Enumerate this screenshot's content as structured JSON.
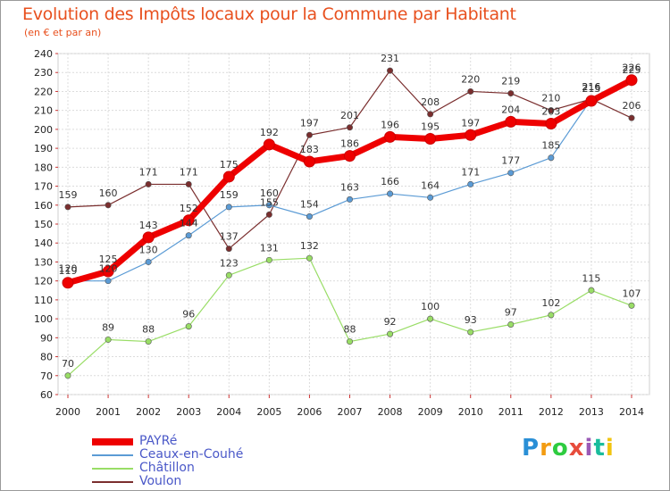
{
  "chart_data": {
    "type": "line",
    "title": "Evolution des Impôts locaux pour la Commune par Habitant",
    "subtitle": "(en € et par an)",
    "xlabel": "",
    "ylabel": "",
    "x": [
      "2000",
      "2001",
      "2002",
      "2003",
      "2004",
      "2005",
      "2006",
      "2007",
      "2008",
      "2009",
      "2010",
      "2011",
      "2012",
      "2013",
      "2014"
    ],
    "yticks": [
      "240",
      "230",
      "220",
      "210",
      "200",
      "190",
      "180",
      "170",
      "160",
      "150",
      "140",
      "130",
      "120",
      "110",
      "100",
      "90",
      "80",
      "70",
      "60"
    ],
    "ylim": [
      60,
      240
    ],
    "grid": true,
    "legend_position": "bottom-left",
    "series": [
      {
        "name": "PAYRé",
        "color": "#ee0000",
        "values": [
          119,
          125,
          143,
          152,
          175,
          192,
          183,
          186,
          196,
          195,
          197,
          204,
          203,
          215,
          226
        ],
        "labels": [
          "119",
          "125",
          "143",
          "152",
          "175",
          "192",
          "183",
          "186",
          "196",
          "195",
          "197",
          "204",
          "203",
          "215",
          "226"
        ]
      },
      {
        "name": "Ceaux-en-Couhé",
        "color": "#5b9bd5",
        "values": [
          120,
          120,
          130,
          144,
          159,
          160,
          154,
          163,
          166,
          164,
          171,
          177,
          185,
          216,
          225
        ],
        "labels": [
          "120",
          "120",
          "130",
          "144",
          "159",
          "160",
          "154",
          "163",
          "166",
          "164",
          "171",
          "177",
          "185",
          "216",
          "225"
        ]
      },
      {
        "name": "Châtillon",
        "color": "#99dd66",
        "values": [
          70,
          89,
          88,
          96,
          123,
          131,
          132,
          88,
          92,
          100,
          93,
          97,
          102,
          115,
          107
        ],
        "labels": [
          "70",
          "89",
          "88",
          "96",
          "123",
          "131",
          "132",
          "88",
          "92",
          "100",
          "93",
          "97",
          "102",
          "115",
          "107"
        ]
      },
      {
        "name": "Voulon",
        "color": "#7a2e2e",
        "values": [
          159,
          160,
          171,
          171,
          137,
          155,
          197,
          201,
          231,
          208,
          220,
          219,
          210,
          216,
          206
        ],
        "labels": [
          "159",
          "160",
          "171",
          "171",
          "137",
          "155",
          "197",
          "201",
          "231",
          "208",
          "220",
          "219",
          "210",
          "216",
          "206"
        ]
      }
    ]
  },
  "brand": {
    "letters": [
      "P",
      "r",
      "o",
      "x",
      "i",
      "t",
      "i"
    ],
    "colors": [
      "#2a8fd6",
      "#f39c12",
      "#2ecc40",
      "#e74c3c",
      "#9b59b6",
      "#1abc9c",
      "#f1c40f"
    ]
  }
}
